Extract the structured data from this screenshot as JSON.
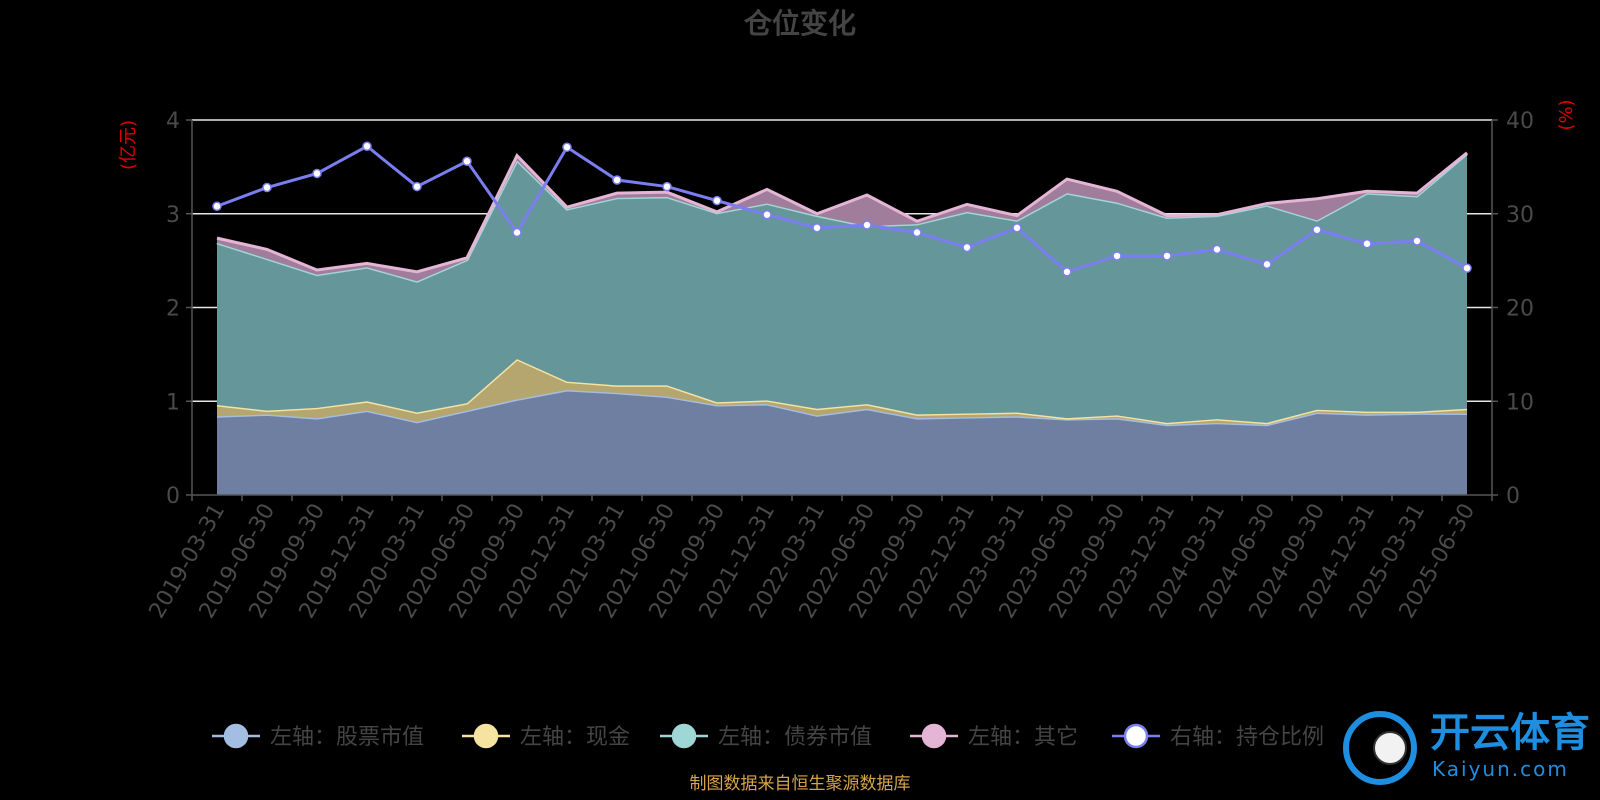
{
  "chart_data": {
    "type": "area",
    "title": "仓位变化",
    "left_unit": "(亿元)",
    "right_unit": "(%)",
    "left_ylim": [
      0,
      4
    ],
    "right_ylim": [
      0,
      40
    ],
    "left_ticks": [
      "0",
      "1",
      "2",
      "3",
      "4"
    ],
    "right_ticks": [
      "0",
      "10",
      "20",
      "30",
      "40"
    ],
    "categories": [
      "2019-03-31",
      "2019-06-30",
      "2019-09-30",
      "2019-12-31",
      "2020-03-31",
      "2020-06-30",
      "2020-09-30",
      "2020-12-31",
      "2021-03-31",
      "2021-06-30",
      "2021-09-30",
      "2021-12-31",
      "2022-03-31",
      "2022-06-30",
      "2022-09-30",
      "2022-12-31",
      "2023-03-31",
      "2023-06-30",
      "2023-09-30",
      "2023-12-31",
      "2024-03-31",
      "2024-06-30",
      "2024-09-30",
      "2024-12-31",
      "2025-03-31",
      "2025-06-30"
    ],
    "series": [
      {
        "name": "左轴：股票市值",
        "axis": "left",
        "stacked": true,
        "color": "#a3bde3",
        "values": [
          0.84,
          0.86,
          0.82,
          0.9,
          0.78,
          0.9,
          1.02,
          1.12,
          1.09,
          1.05,
          0.96,
          0.97,
          0.85,
          0.92,
          0.82,
          0.83,
          0.84,
          0.81,
          0.82,
          0.75,
          0.77,
          0.75,
          0.88,
          0.86,
          0.87,
          0.87
        ]
      },
      {
        "name": "左轴：现金",
        "axis": "left",
        "stacked": true,
        "color": "#f6e3a1",
        "values": [
          0.12,
          0.04,
          0.11,
          0.1,
          0.1,
          0.08,
          0.43,
          0.09,
          0.08,
          0.12,
          0.03,
          0.04,
          0.07,
          0.05,
          0.04,
          0.04,
          0.04,
          0.01,
          0.03,
          0.02,
          0.04,
          0.02,
          0.03,
          0.03,
          0.02,
          0.05
        ]
      },
      {
        "name": "左轴：债券市值",
        "axis": "left",
        "stacked": true,
        "color": "#9fd6d6",
        "values": [
          1.73,
          1.62,
          1.42,
          1.43,
          1.4,
          1.53,
          2.12,
          1.84,
          2.0,
          2.01,
          2.02,
          2.1,
          2.06,
          1.9,
          2.03,
          2.15,
          2.05,
          2.4,
          2.27,
          2.19,
          2.17,
          2.32,
          2.02,
          2.33,
          2.3,
          2.72
        ]
      },
      {
        "name": "左轴：其它",
        "axis": "left",
        "stacked": true,
        "color": "#e4b5d5",
        "values": [
          0.05,
          0.1,
          0.05,
          0.04,
          0.1,
          0.02,
          0.05,
          0.02,
          0.05,
          0.05,
          0.01,
          0.15,
          0.02,
          0.33,
          0.03,
          0.08,
          0.05,
          0.15,
          0.12,
          0.02,
          0.01,
          0.02,
          0.23,
          0.02,
          0.03,
          0.01
        ]
      },
      {
        "name": "右轴：持仓比例",
        "axis": "right",
        "stacked": false,
        "color": "#7b7ef0",
        "values": [
          30.8,
          32.8,
          34.3,
          37.2,
          32.9,
          35.6,
          28.0,
          37.1,
          33.6,
          32.9,
          31.4,
          29.9,
          28.5,
          28.8,
          28.0,
          26.4,
          28.5,
          23.8,
          25.5,
          25.5,
          26.2,
          24.6,
          28.3,
          26.8,
          27.1,
          24.2
        ]
      }
    ],
    "legend_position": "bottom",
    "grid": true
  },
  "source_note": "制图数据来自恒生聚源数据库",
  "watermark": {
    "text": "开云体育",
    "sub": "Kaiyun.com"
  }
}
